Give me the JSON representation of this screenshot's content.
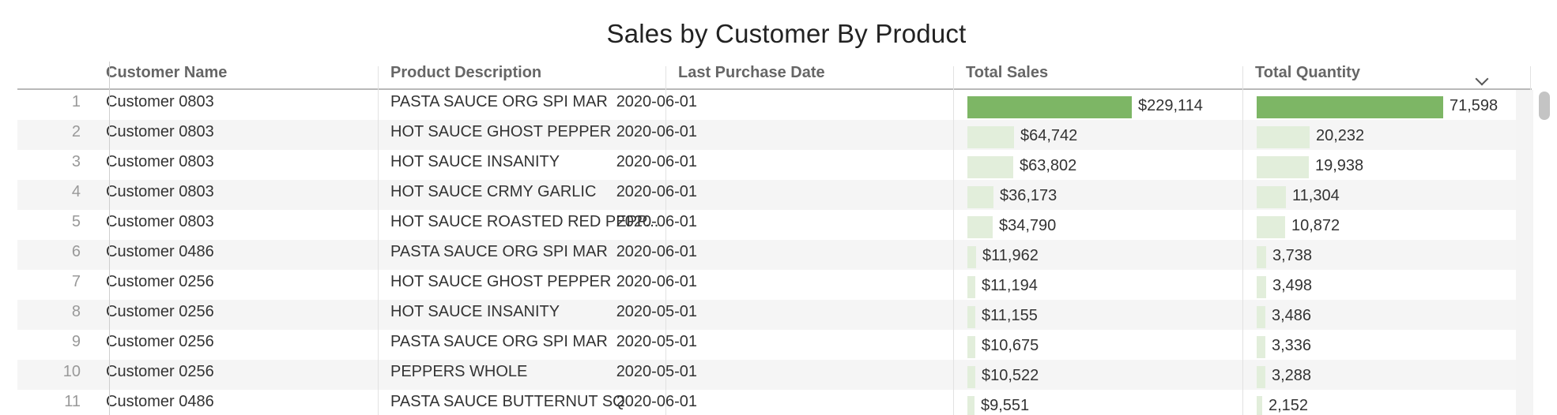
{
  "title": "Sales by Customer By Product",
  "columns": {
    "customer_name": "Customer Name",
    "product_description": "Product Description",
    "last_purchase_date": "Last Purchase Date",
    "total_sales": "Total Sales",
    "total_quantity": "Total Quantity"
  },
  "sort_icon": "chevron-down-icon",
  "colors": {
    "bar_primary": "#7db665",
    "bar_light": "#e2eedb"
  },
  "rows": [
    {
      "num": "1",
      "customer": "Customer 0803",
      "product": "PASTA SAUCE ORG SPI MAR",
      "date": "2020-06-01",
      "sales": 229114,
      "sales_label": "$229,114",
      "qty": 71598,
      "qty_label": "71,598"
    },
    {
      "num": "2",
      "customer": "Customer 0803",
      "product": "HOT SAUCE GHOST PEPPER",
      "date": "2020-06-01",
      "sales": 64742,
      "sales_label": "$64,742",
      "qty": 20232,
      "qty_label": "20,232"
    },
    {
      "num": "3",
      "customer": "Customer 0803",
      "product": "HOT SAUCE INSANITY",
      "date": "2020-06-01",
      "sales": 63802,
      "sales_label": "$63,802",
      "qty": 19938,
      "qty_label": "19,938"
    },
    {
      "num": "4",
      "customer": "Customer 0803",
      "product": "HOT SAUCE CRMY GARLIC",
      "date": "2020-06-01",
      "sales": 36173,
      "sales_label": "$36,173",
      "qty": 11304,
      "qty_label": "11,304"
    },
    {
      "num": "5",
      "customer": "Customer 0803",
      "product": "HOT SAUCE ROASTED RED PEPP...",
      "date": "2020-06-01",
      "sales": 34790,
      "sales_label": "$34,790",
      "qty": 10872,
      "qty_label": "10,872"
    },
    {
      "num": "6",
      "customer": "Customer 0486",
      "product": "PASTA SAUCE ORG SPI MAR",
      "date": "2020-06-01",
      "sales": 11962,
      "sales_label": "$11,962",
      "qty": 3738,
      "qty_label": "3,738"
    },
    {
      "num": "7",
      "customer": "Customer 0256",
      "product": "HOT SAUCE GHOST PEPPER",
      "date": "2020-06-01",
      "sales": 11194,
      "sales_label": "$11,194",
      "qty": 3498,
      "qty_label": "3,498"
    },
    {
      "num": "8",
      "customer": "Customer 0256",
      "product": "HOT SAUCE INSANITY",
      "date": "2020-05-01",
      "sales": 11155,
      "sales_label": "$11,155",
      "qty": 3486,
      "qty_label": "3,486"
    },
    {
      "num": "9",
      "customer": "Customer 0256",
      "product": "PASTA SAUCE ORG SPI MAR",
      "date": "2020-05-01",
      "sales": 10675,
      "sales_label": "$10,675",
      "qty": 3336,
      "qty_label": "3,336"
    },
    {
      "num": "10",
      "customer": "Customer 0256",
      "product": "PEPPERS WHOLE",
      "date": "2020-05-01",
      "sales": 10522,
      "sales_label": "$10,522",
      "qty": 3288,
      "qty_label": "3,288"
    },
    {
      "num": "11",
      "customer": "Customer 0486",
      "product": "PASTA SAUCE BUTTERNUT SQ",
      "date": "2020-06-01",
      "sales": 9551,
      "sales_label": "$9,551",
      "qty": 2152,
      "qty_label": "2,152"
    }
  ]
}
